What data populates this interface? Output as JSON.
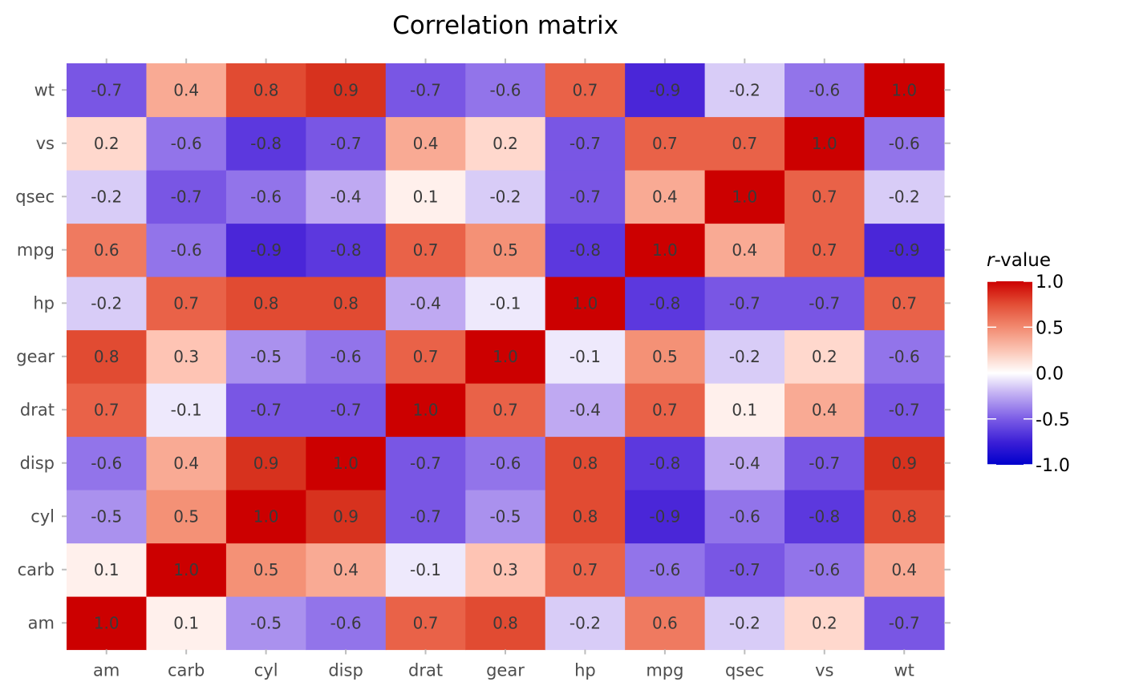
{
  "chart_data": {
    "type": "heatmap",
    "title": "Correlation matrix",
    "x_categories": [
      "am",
      "carb",
      "cyl",
      "disp",
      "drat",
      "gear",
      "hp",
      "mpg",
      "qsec",
      "vs",
      "wt"
    ],
    "y_categories": [
      "am",
      "carb",
      "cyl",
      "disp",
      "drat",
      "gear",
      "hp",
      "mpg",
      "qsec",
      "vs",
      "wt"
    ],
    "values": [
      [
        1.0,
        0.1,
        -0.5,
        -0.6,
        0.7,
        0.8,
        -0.2,
        0.6,
        -0.2,
        0.2,
        -0.7
      ],
      [
        0.1,
        1.0,
        0.5,
        0.4,
        -0.1,
        0.3,
        0.7,
        -0.6,
        -0.7,
        -0.6,
        0.4
      ],
      [
        -0.5,
        0.5,
        1.0,
        0.9,
        -0.7,
        -0.5,
        0.8,
        -0.9,
        -0.6,
        -0.8,
        0.8
      ],
      [
        -0.6,
        0.4,
        0.9,
        1.0,
        -0.7,
        -0.6,
        0.8,
        -0.8,
        -0.4,
        -0.7,
        0.9
      ],
      [
        0.7,
        -0.1,
        -0.7,
        -0.7,
        1.0,
        0.7,
        -0.4,
        0.7,
        0.1,
        0.4,
        -0.7
      ],
      [
        0.8,
        0.3,
        -0.5,
        -0.6,
        0.7,
        1.0,
        -0.1,
        0.5,
        -0.2,
        0.2,
        -0.6
      ],
      [
        -0.2,
        0.7,
        0.8,
        0.8,
        -0.4,
        -0.1,
        1.0,
        -0.8,
        -0.7,
        -0.7,
        0.7
      ],
      [
        0.6,
        -0.6,
        -0.9,
        -0.8,
        0.7,
        0.5,
        -0.8,
        1.0,
        0.4,
        0.7,
        -0.9
      ],
      [
        -0.2,
        -0.7,
        -0.6,
        -0.4,
        0.1,
        -0.2,
        -0.7,
        0.4,
        1.0,
        0.7,
        -0.2
      ],
      [
        0.2,
        -0.6,
        -0.8,
        -0.7,
        0.4,
        0.2,
        -0.7,
        0.7,
        0.7,
        1.0,
        -0.6
      ],
      [
        -0.7,
        0.4,
        0.8,
        0.9,
        -0.7,
        -0.6,
        0.7,
        -0.9,
        -0.2,
        -0.6,
        1.0
      ]
    ],
    "value_range": [
      -1,
      1
    ],
    "colors": {
      "low": "#0000cc",
      "mid": "#ffffff",
      "high": "#cc0000"
    },
    "legend": {
      "title_italic": "r",
      "title_rest": "-value",
      "ticks": [
        "1.0",
        "0.5",
        "0.0",
        "-0.5",
        "-1.0"
      ],
      "tick_values": [
        1.0,
        0.5,
        0.0,
        -0.5,
        -1.0
      ],
      "position": "right"
    },
    "grid": false
  }
}
